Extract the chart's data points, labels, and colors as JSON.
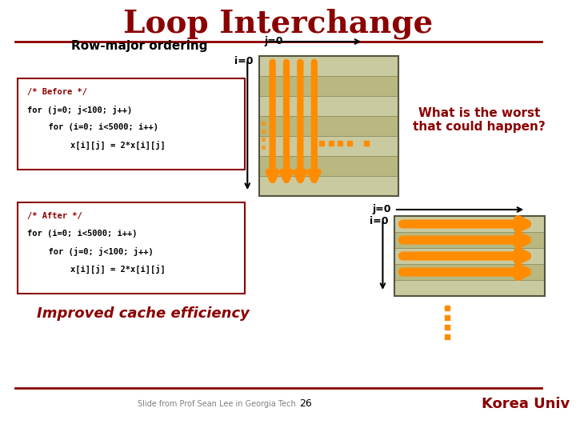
{
  "title": "Loop Interchange",
  "title_color": "#8B0000",
  "title_fontsize": 28,
  "bg_color": "#FFFFFF",
  "dark_red": "#8B0000",
  "orange": "#FF8C00",
  "light_orange": "#FFB347",
  "grid_bg": "#C8C896",
  "grid_bg2": "#D4D4A0",
  "row_major_label": "Row-major ordering",
  "before_code": "/* Before */\nfor (j=0; j<100; j++)\n  for (i=0; i<5000; i++)\n    x[i][j] = 2*x[i][j]",
  "after_code": "/* After */\nfor (i=0; i<5000; i++)\n  for (j=0; j<100; j++)\n    x[i][j] = 2*x[i][j]",
  "what_is_worst": "What is the worst\nthat could happen?",
  "improved": "Improved cache efficiency",
  "slide_credit": "Slide from Prof Sean Lee in Georgia Tech",
  "page_num": "26",
  "korea_univ": "Korea Univ"
}
